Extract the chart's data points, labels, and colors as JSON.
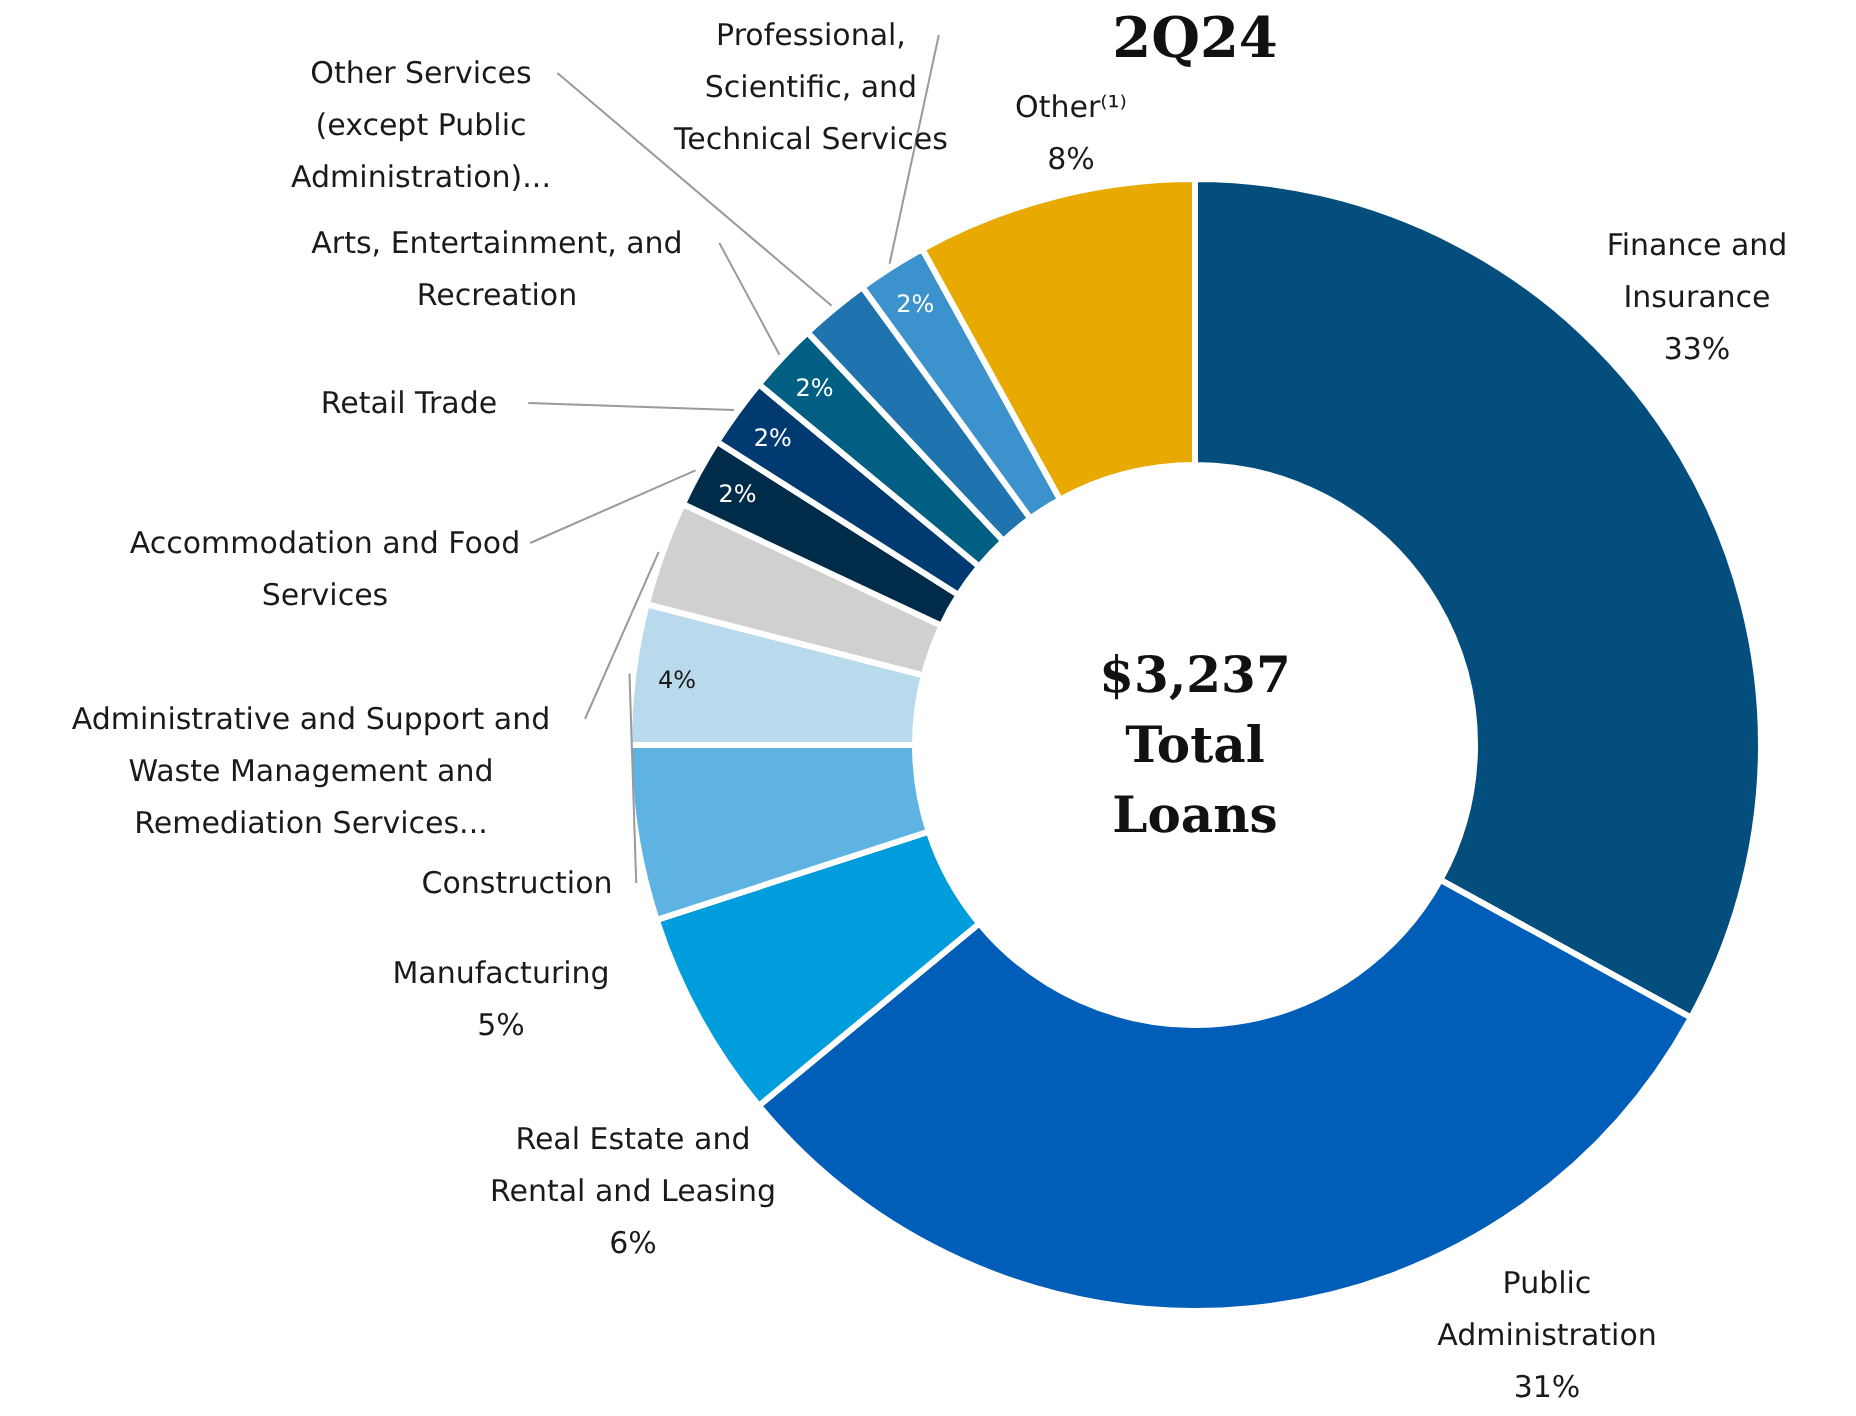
{
  "chart_data": {
    "type": "donut",
    "title": "2Q24",
    "categories": [
      "Finance and Insurance",
      "Public Administration",
      "Real Estate and Rental and Leasing",
      "Manufacturing",
      "Construction",
      "Administrative and Support and Waste Management and Remediation Services...",
      "Accommodation and Food Services",
      "Retail Trade",
      "Arts, Entertainment, and Recreation",
      "Other Services (except Public Administration)...",
      "Professional, Scientific, and Technical Services",
      "Other⁽¹⁾"
    ],
    "values": [
      33,
      31,
      6,
      5,
      4,
      3,
      2,
      2,
      2,
      2,
      2,
      8
    ],
    "value_labels": [
      "33%",
      "31%",
      "6%",
      "5%",
      "4%",
      null,
      "2%",
      "2%",
      "2%",
      null,
      "2%",
      "8%"
    ],
    "colors": [
      "#044e7e",
      "#005eb8",
      "#009ddc",
      "#5fb3e3",
      "#b9d9ec",
      "#d0d0ce",
      "#002b49",
      "#003a70",
      "#005f83",
      "#1f74b0",
      "#3b92cc",
      "#e8a900"
    ],
    "annotations": [
      "$3,237 Total Loans"
    ]
  }
}
